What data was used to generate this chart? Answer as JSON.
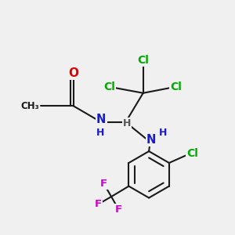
{
  "bg_color": "#f0f0f0",
  "bond_color": "#1a1a1a",
  "bond_width": 1.5,
  "atom_colors": {
    "C": "#1a1a1a",
    "O": "#dd0000",
    "N": "#1a1acc",
    "Cl": "#00aa00",
    "F": "#cc00cc",
    "H": "#555555"
  },
  "font_size": 10
}
